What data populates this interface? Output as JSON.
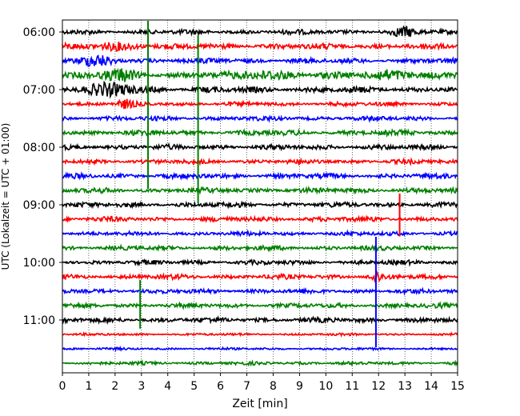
{
  "chart_data": {
    "type": "line",
    "title": "",
    "xlabel": "Zeit  [min]",
    "ylabel": "UTC (Lokalzeit = UTC + 01:00)",
    "xlim": [
      0,
      15
    ],
    "x_ticks": [
      0,
      1,
      2,
      3,
      4,
      5,
      6,
      7,
      8,
      9,
      10,
      11,
      12,
      13,
      14,
      15
    ],
    "x_tick_labels": [
      "0",
      "1",
      "2",
      "3",
      "4",
      "5",
      "6",
      "7",
      "8",
      "9",
      "10",
      "11",
      "12",
      "13",
      "14",
      "15"
    ],
    "y_tick_labels": [
      "06:00",
      "07:00",
      "08:00",
      "09:00",
      "10:00",
      "11:00"
    ],
    "y_tick_rows": [
      0,
      4,
      8,
      12,
      16,
      20
    ],
    "grid": "vertical dotted at each minute",
    "row_minutes": 15,
    "trace_start": "06:00",
    "trace_count": 24,
    "color_cycle": [
      "#000000",
      "#ff0000",
      "#0000ff",
      "#008000"
    ],
    "series": [
      {
        "start": "06:00",
        "color": "#000000",
        "noise": 0.32
      },
      {
        "start": "06:15",
        "color": "#ff0000",
        "noise": 0.38
      },
      {
        "start": "06:30",
        "color": "#0000ff",
        "noise": 0.34
      },
      {
        "start": "06:45",
        "color": "#008000",
        "noise": 0.42
      },
      {
        "start": "07:00",
        "color": "#000000",
        "noise": 0.4
      },
      {
        "start": "07:15",
        "color": "#ff0000",
        "noise": 0.28
      },
      {
        "start": "07:30",
        "color": "#0000ff",
        "noise": 0.3
      },
      {
        "start": "07:45",
        "color": "#008000",
        "noise": 0.35
      },
      {
        "start": "08:00",
        "color": "#000000",
        "noise": 0.33
      },
      {
        "start": "08:15",
        "color": "#ff0000",
        "noise": 0.3
      },
      {
        "start": "08:30",
        "color": "#0000ff",
        "noise": 0.33
      },
      {
        "start": "08:45",
        "color": "#008000",
        "noise": 0.33
      },
      {
        "start": "09:00",
        "color": "#000000",
        "noise": 0.33
      },
      {
        "start": "09:15",
        "color": "#ff0000",
        "noise": 0.33
      },
      {
        "start": "09:30",
        "color": "#0000ff",
        "noise": 0.28
      },
      {
        "start": "09:45",
        "color": "#008000",
        "noise": 0.3
      },
      {
        "start": "10:00",
        "color": "#000000",
        "noise": 0.3
      },
      {
        "start": "10:15",
        "color": "#ff0000",
        "noise": 0.32
      },
      {
        "start": "10:30",
        "color": "#0000ff",
        "noise": 0.3
      },
      {
        "start": "10:45",
        "color": "#008000",
        "noise": 0.3
      },
      {
        "start": "11:00",
        "color": "#000000",
        "noise": 0.33
      },
      {
        "start": "11:15",
        "color": "#ff0000",
        "noise": 0.16
      },
      {
        "start": "11:30",
        "color": "#0000ff",
        "noise": 0.16
      },
      {
        "start": "11:45",
        "color": "#008000",
        "noise": 0.22
      }
    ],
    "bursts": [
      {
        "row": 0,
        "center_min": 13.0,
        "width_min": 0.6,
        "amplitude": 0.5
      },
      {
        "row": 1,
        "center_min": 2.2,
        "width_min": 1.2,
        "amplitude": 0.35
      },
      {
        "row": 2,
        "center_min": 1.3,
        "width_min": 0.9,
        "amplitude": 0.55
      },
      {
        "row": 3,
        "center_min": 2.2,
        "width_min": 0.9,
        "amplitude": 0.6
      },
      {
        "row": 3,
        "center_min": 7.8,
        "width_min": 1.4,
        "amplitude": 0.45
      },
      {
        "row": 3,
        "center_min": 12.5,
        "width_min": 1.2,
        "amplitude": 0.55
      },
      {
        "row": 4,
        "center_min": 1.8,
        "width_min": 1.5,
        "amplitude": 0.6
      },
      {
        "row": 5,
        "center_min": 2.4,
        "width_min": 0.4,
        "amplitude": 0.45
      },
      {
        "row": 17,
        "center_min": 11.9,
        "width_min": 0.3,
        "amplitude": 0.6
      }
    ],
    "spikes": [
      {
        "start_row": 0,
        "end_row": 10.9,
        "minute": 3.25,
        "color": "#008000"
      },
      {
        "start_row": 1,
        "end_row": 11.9,
        "minute": 5.15,
        "color": "#008000"
      },
      {
        "start_row": 12,
        "end_row": 14.2,
        "minute": 12.8,
        "color": "#ff0000"
      },
      {
        "start_row": 15,
        "end_row": 21.9,
        "minute": 11.9,
        "color": "#0000ff"
      },
      {
        "start_row": 18,
        "end_row": 20.6,
        "minute": 2.95,
        "color": "#008000"
      }
    ]
  }
}
